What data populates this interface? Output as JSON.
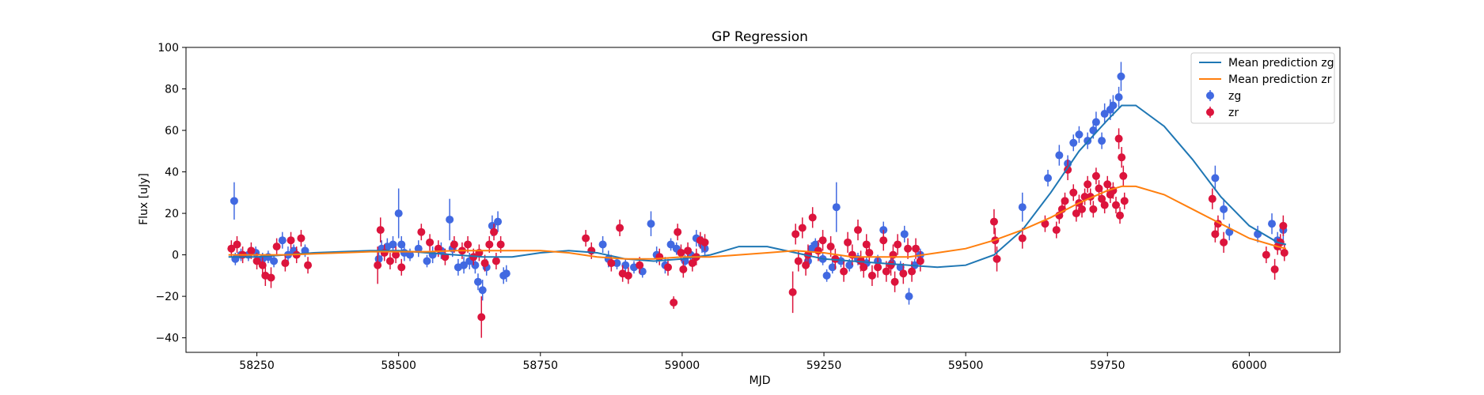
{
  "chart_data": {
    "type": "scatter",
    "title": "GP Regression",
    "xlabel": "MJD",
    "ylabel": "Flux [uJy]",
    "xlim": [
      58125,
      60160
    ],
    "ylim": [
      -47,
      100
    ],
    "xticks": [
      58250,
      58500,
      58750,
      59000,
      59250,
      59500,
      59750,
      60000
    ],
    "yticks": [
      -40,
      -20,
      0,
      20,
      40,
      60,
      80,
      100
    ],
    "grid": false,
    "legend_position": "top-right",
    "lines": [
      {
        "name": "Mean prediction zg",
        "color": "#1f77b4",
        "x": [
          58200,
          58250,
          58300,
          58350,
          58400,
          58450,
          58500,
          58550,
          58600,
          58650,
          58700,
          58750,
          58800,
          58850,
          58900,
          58950,
          59000,
          59050,
          59100,
          59150,
          59200,
          59250,
          59300,
          59350,
          59400,
          59450,
          59500,
          59550,
          59600,
          59650,
          59700,
          59750,
          59775,
          59800,
          59850,
          59900,
          59950,
          60000,
          60050,
          60065
        ],
        "y": [
          -1,
          -1,
          0,
          1,
          1.5,
          2,
          2,
          1,
          0,
          -1,
          -1,
          1,
          2,
          1,
          -2,
          -3,
          -2,
          0,
          4,
          4,
          1,
          -2,
          -3,
          -4,
          -5,
          -6,
          -5,
          0,
          12,
          30,
          50,
          65,
          72,
          72,
          62,
          46,
          28,
          14,
          6,
          5
        ]
      },
      {
        "name": "Mean prediction zr",
        "color": "#ff7f0e",
        "x": [
          58200,
          58250,
          58300,
          58350,
          58400,
          58450,
          58500,
          58550,
          58600,
          58650,
          58700,
          58750,
          58800,
          58850,
          58900,
          58950,
          59000,
          59050,
          59100,
          59150,
          59200,
          59250,
          59300,
          59350,
          59400,
          59450,
          59500,
          59550,
          59600,
          59650,
          59700,
          59750,
          59775,
          59800,
          59850,
          59900,
          59950,
          60000,
          60050,
          60065
        ],
        "y": [
          0,
          0,
          0,
          0.5,
          1,
          1.5,
          1.5,
          1.5,
          2,
          2,
          2,
          2,
          1,
          -1,
          -2,
          -2,
          -1,
          -1,
          0,
          1,
          2,
          1,
          -1,
          -1,
          -1,
          1,
          3,
          7,
          12,
          18,
          25,
          31,
          33,
          33,
          29,
          22,
          15,
          8,
          4,
          3
        ]
      }
    ],
    "series": [
      {
        "name": "zg",
        "color": "#4169e1",
        "points": [
          [
            58210,
            26,
            9
          ],
          [
            58212,
            -2,
            3
          ],
          [
            58222,
            0,
            3
          ],
          [
            58235,
            0,
            3
          ],
          [
            58248,
            1,
            3
          ],
          [
            58260,
            -2,
            3
          ],
          [
            58270,
            -1,
            3
          ],
          [
            58280,
            -3,
            3
          ],
          [
            58295,
            7,
            4
          ],
          [
            58305,
            0,
            4
          ],
          [
            58315,
            2,
            3
          ],
          [
            58335,
            2,
            3
          ],
          [
            58465,
            -2,
            4
          ],
          [
            58470,
            3,
            4
          ],
          [
            58480,
            4,
            4
          ],
          [
            58490,
            5,
            4
          ],
          [
            58500,
            20,
            12
          ],
          [
            58505,
            5,
            4
          ],
          [
            58510,
            1,
            4
          ],
          [
            58520,
            0,
            3
          ],
          [
            58535,
            3,
            4
          ],
          [
            58550,
            -3,
            3
          ],
          [
            58560,
            0,
            4
          ],
          [
            58575,
            2,
            4
          ],
          [
            58590,
            17,
            10
          ],
          [
            58595,
            3,
            4
          ],
          [
            58605,
            -6,
            4
          ],
          [
            58615,
            -5,
            4
          ],
          [
            58625,
            -3,
            4
          ],
          [
            58635,
            -5,
            4
          ],
          [
            58640,
            -13,
            4
          ],
          [
            58648,
            -17,
            5
          ],
          [
            58655,
            -6,
            4
          ],
          [
            58665,
            14,
            5
          ],
          [
            58675,
            16,
            5
          ],
          [
            58685,
            -10,
            4
          ],
          [
            58690,
            -9,
            4
          ],
          [
            58860,
            5,
            4
          ],
          [
            58870,
            -2,
            4
          ],
          [
            58885,
            -4,
            3
          ],
          [
            58900,
            -5,
            3
          ],
          [
            58915,
            -6,
            3
          ],
          [
            58930,
            -8,
            3
          ],
          [
            58945,
            15,
            6
          ],
          [
            58955,
            0,
            4
          ],
          [
            58970,
            -5,
            4
          ],
          [
            58980,
            5,
            3
          ],
          [
            58990,
            3,
            3
          ],
          [
            59005,
            -3,
            3
          ],
          [
            59015,
            0,
            3
          ],
          [
            59025,
            8,
            4
          ],
          [
            59035,
            5,
            4
          ],
          [
            59040,
            3,
            4
          ],
          [
            59222,
            -3,
            3
          ],
          [
            59228,
            3,
            3
          ],
          [
            59235,
            5,
            3
          ],
          [
            59248,
            -2,
            3
          ],
          [
            59255,
            -10,
            3
          ],
          [
            59265,
            -6,
            3
          ],
          [
            59272,
            23,
            12
          ],
          [
            59280,
            -3,
            3
          ],
          [
            59295,
            -5,
            3
          ],
          [
            59310,
            -2,
            3
          ],
          [
            59325,
            -4,
            3
          ],
          [
            59345,
            -3,
            3
          ],
          [
            59355,
            12,
            4
          ],
          [
            59370,
            -4,
            3
          ],
          [
            59385,
            -6,
            3
          ],
          [
            59392,
            10,
            4
          ],
          [
            59400,
            -20,
            4
          ],
          [
            59410,
            -5,
            3
          ],
          [
            59420,
            0,
            3
          ],
          [
            59600,
            23,
            7
          ],
          [
            59645,
            37,
            4
          ],
          [
            59665,
            48,
            5
          ],
          [
            59680,
            44,
            4
          ],
          [
            59690,
            54,
            4
          ],
          [
            59700,
            58,
            4
          ],
          [
            59715,
            55,
            4
          ],
          [
            59725,
            60,
            4
          ],
          [
            59730,
            64,
            5
          ],
          [
            59740,
            55,
            4
          ],
          [
            59745,
            68,
            5
          ],
          [
            59755,
            70,
            5
          ],
          [
            59760,
            72,
            5
          ],
          [
            59770,
            76,
            5
          ],
          [
            59774,
            86,
            7
          ],
          [
            59940,
            37,
            6
          ],
          [
            59955,
            22,
            5
          ],
          [
            59965,
            11,
            4
          ],
          [
            60015,
            10,
            4
          ],
          [
            60040,
            15,
            5
          ],
          [
            60050,
            7,
            4
          ],
          [
            60060,
            12,
            5
          ]
        ]
      },
      {
        "name": "zr",
        "color": "#dc143c",
        "points": [
          [
            58205,
            3,
            4
          ],
          [
            58215,
            5,
            4
          ],
          [
            58225,
            0,
            4
          ],
          [
            58240,
            2,
            4
          ],
          [
            58250,
            -3,
            4
          ],
          [
            58260,
            -5,
            4
          ],
          [
            58265,
            -10,
            5
          ],
          [
            58275,
            -11,
            5
          ],
          [
            58285,
            4,
            4
          ],
          [
            58300,
            -4,
            4
          ],
          [
            58310,
            7,
            4
          ],
          [
            58320,
            0,
            4
          ],
          [
            58328,
            8,
            4
          ],
          [
            58340,
            -5,
            4
          ],
          [
            58463,
            -5,
            9
          ],
          [
            58468,
            12,
            6
          ],
          [
            58475,
            1,
            4
          ],
          [
            58485,
            -3,
            4
          ],
          [
            58495,
            0,
            4
          ],
          [
            58505,
            -6,
            4
          ],
          [
            58540,
            11,
            4
          ],
          [
            58555,
            6,
            4
          ],
          [
            58570,
            3,
            4
          ],
          [
            58582,
            -1,
            4
          ],
          [
            58598,
            5,
            4
          ],
          [
            58612,
            2,
            4
          ],
          [
            58622,
            5,
            4
          ],
          [
            58632,
            -1,
            4
          ],
          [
            58642,
            1,
            4
          ],
          [
            58646,
            -30,
            10
          ],
          [
            58652,
            -4,
            4
          ],
          [
            58660,
            5,
            4
          ],
          [
            58668,
            11,
            4
          ],
          [
            58672,
            -3,
            4
          ],
          [
            58680,
            5,
            4
          ],
          [
            58830,
            8,
            4
          ],
          [
            58840,
            2,
            4
          ],
          [
            58875,
            -4,
            4
          ],
          [
            58890,
            13,
            4
          ],
          [
            58895,
            -9,
            4
          ],
          [
            58905,
            -10,
            4
          ],
          [
            58925,
            -5,
            4
          ],
          [
            58960,
            -1,
            4
          ],
          [
            58975,
            -6,
            4
          ],
          [
            58985,
            -23,
            3
          ],
          [
            58992,
            11,
            4
          ],
          [
            58998,
            1,
            4
          ],
          [
            59002,
            -7,
            4
          ],
          [
            59010,
            2,
            4
          ],
          [
            59018,
            -4,
            4
          ],
          [
            59025,
            -1,
            4
          ],
          [
            59032,
            7,
            4
          ],
          [
            59040,
            6,
            4
          ],
          [
            59195,
            -18,
            10
          ],
          [
            59200,
            10,
            5
          ],
          [
            59205,
            -3,
            5
          ],
          [
            59212,
            13,
            5
          ],
          [
            59218,
            -5,
            5
          ],
          [
            59222,
            0,
            5
          ],
          [
            59230,
            18,
            5
          ],
          [
            59240,
            2,
            5
          ],
          [
            59248,
            7,
            5
          ],
          [
            59262,
            4,
            5
          ],
          [
            59270,
            -2,
            5
          ],
          [
            59285,
            -8,
            5
          ],
          [
            59292,
            6,
            5
          ],
          [
            59300,
            0,
            5
          ],
          [
            59310,
            12,
            5
          ],
          [
            59315,
            -3,
            5
          ],
          [
            59320,
            -6,
            5
          ],
          [
            59325,
            5,
            5
          ],
          [
            59330,
            1,
            5
          ],
          [
            59335,
            -10,
            5
          ],
          [
            59345,
            -6,
            5
          ],
          [
            59355,
            7,
            5
          ],
          [
            59360,
            -8,
            5
          ],
          [
            59368,
            -5,
            5
          ],
          [
            59372,
            0,
            5
          ],
          [
            59375,
            -13,
            5
          ],
          [
            59380,
            5,
            5
          ],
          [
            59390,
            -9,
            5
          ],
          [
            59398,
            3,
            5
          ],
          [
            59405,
            -8,
            5
          ],
          [
            59412,
            3,
            5
          ],
          [
            59420,
            -3,
            5
          ],
          [
            59550,
            16,
            6
          ],
          [
            59552,
            7,
            6
          ],
          [
            59555,
            -2,
            6
          ],
          [
            59600,
            8,
            5
          ],
          [
            59640,
            15,
            4
          ],
          [
            59660,
            12,
            4
          ],
          [
            59665,
            19,
            4
          ],
          [
            59670,
            22,
            4
          ],
          [
            59675,
            26,
            4
          ],
          [
            59680,
            41,
            5
          ],
          [
            59690,
            30,
            4
          ],
          [
            59695,
            20,
            4
          ],
          [
            59700,
            25,
            4
          ],
          [
            59705,
            22,
            4
          ],
          [
            59710,
            28,
            4
          ],
          [
            59715,
            34,
            4
          ],
          [
            59720,
            28,
            4
          ],
          [
            59725,
            22,
            4
          ],
          [
            59730,
            38,
            4
          ],
          [
            59735,
            32,
            4
          ],
          [
            59740,
            27,
            4
          ],
          [
            59745,
            24,
            4
          ],
          [
            59750,
            34,
            4
          ],
          [
            59755,
            29,
            4
          ],
          [
            59760,
            31,
            4
          ],
          [
            59765,
            24,
            4
          ],
          [
            59770,
            56,
            5
          ],
          [
            59772,
            19,
            4
          ],
          [
            59775,
            47,
            5
          ],
          [
            59778,
            38,
            5
          ],
          [
            59780,
            26,
            4
          ],
          [
            59935,
            27,
            5
          ],
          [
            59940,
            10,
            4
          ],
          [
            59945,
            15,
            4
          ],
          [
            59955,
            6,
            5
          ],
          [
            60030,
            0,
            4
          ],
          [
            60045,
            -7,
            5
          ],
          [
            60050,
            4,
            4
          ],
          [
            60055,
            6,
            4
          ],
          [
            60060,
            14,
            5
          ],
          [
            60062,
            1,
            4
          ]
        ]
      }
    ]
  }
}
